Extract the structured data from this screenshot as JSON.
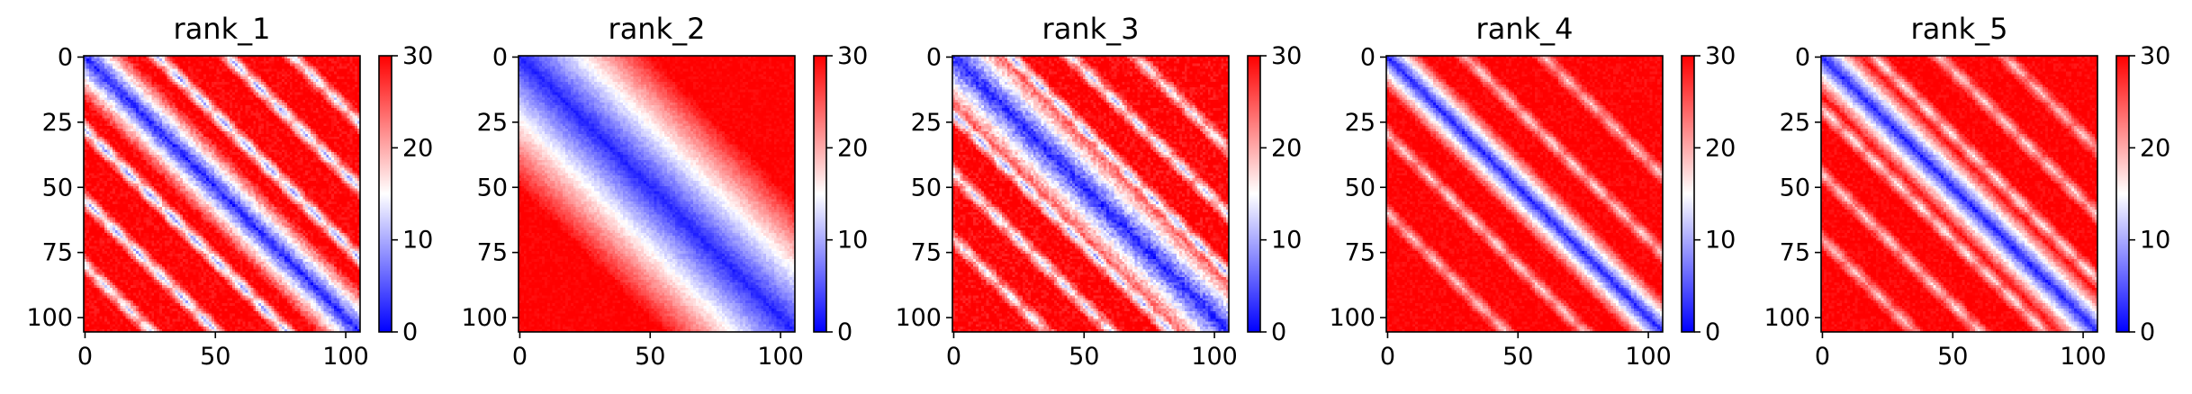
{
  "chart_data": [
    {
      "type": "heatmap",
      "title": "rank_1",
      "matrix_size": 106,
      "xticks": [
        0,
        50,
        100
      ],
      "yticks": [
        0,
        25,
        50,
        75,
        100
      ],
      "colorbar": {
        "vmin": 0,
        "vmax": 30,
        "ticks": [
          0,
          10,
          20,
          30
        ],
        "colormap": "bwr"
      },
      "description_of_values": "pairwise distance map; ~0 on the main diagonal, strong low-value (blue/white) off-diagonal bands parallel to the diagonal",
      "off_diagonal_bands": [
        {
          "offset": 28,
          "min_value": 9
        },
        {
          "offset": 55,
          "min_value": 10
        },
        {
          "offset": 80,
          "min_value": 12
        }
      ]
    },
    {
      "type": "heatmap",
      "title": "rank_2",
      "matrix_size": 106,
      "xticks": [
        0,
        50,
        100
      ],
      "yticks": [
        0,
        25,
        50,
        75,
        100
      ],
      "colorbar": {
        "vmin": 0,
        "vmax": 30,
        "ticks": [
          0,
          10,
          20,
          30
        ],
        "colormap": "bwr"
      },
      "description_of_values": "distance grows smoothly from the diagonal; almost no off-diagonal contacts",
      "off_diagonal_bands": []
    },
    {
      "type": "heatmap",
      "title": "rank_3",
      "matrix_size": 106,
      "xticks": [
        0,
        50,
        100
      ],
      "yticks": [
        0,
        25,
        50,
        75,
        100
      ],
      "colorbar": {
        "vmin": 0,
        "vmax": 30,
        "ticks": [
          0,
          10,
          20,
          30
        ],
        "colormap": "bwr"
      },
      "description_of_values": "patchy white/blue contacts near the diagonal and along short-period bands",
      "off_diagonal_bands": [
        {
          "offset": 22,
          "min_value": 10
        },
        {
          "offset": 45,
          "min_value": 12
        },
        {
          "offset": 70,
          "min_value": 14
        }
      ]
    },
    {
      "type": "heatmap",
      "title": "rank_4",
      "matrix_size": 106,
      "xticks": [
        0,
        50,
        100
      ],
      "yticks": [
        0,
        25,
        50,
        75,
        100
      ],
      "colorbar": {
        "vmin": 0,
        "vmax": 30,
        "ticks": [
          0,
          10,
          20,
          30
        ],
        "colormap": "bwr"
      },
      "description_of_values": "mostly red with faint light bands parallel to the diagonal",
      "off_diagonal_bands": [
        {
          "offset": 30,
          "min_value": 17
        },
        {
          "offset": 60,
          "min_value": 18
        }
      ]
    },
    {
      "type": "heatmap",
      "title": "rank_5",
      "matrix_size": 106,
      "xticks": [
        0,
        50,
        100
      ],
      "yticks": [
        0,
        25,
        50,
        75,
        100
      ],
      "colorbar": {
        "vmin": 0,
        "vmax": 30,
        "ticks": [
          0,
          10,
          20,
          30
        ],
        "colormap": "bwr"
      },
      "description_of_values": "red background with several pale bands parallel to the diagonal",
      "off_diagonal_bands": [
        {
          "offset": 20,
          "min_value": 16
        },
        {
          "offset": 45,
          "min_value": 17
        },
        {
          "offset": 70,
          "min_value": 18
        }
      ]
    }
  ]
}
